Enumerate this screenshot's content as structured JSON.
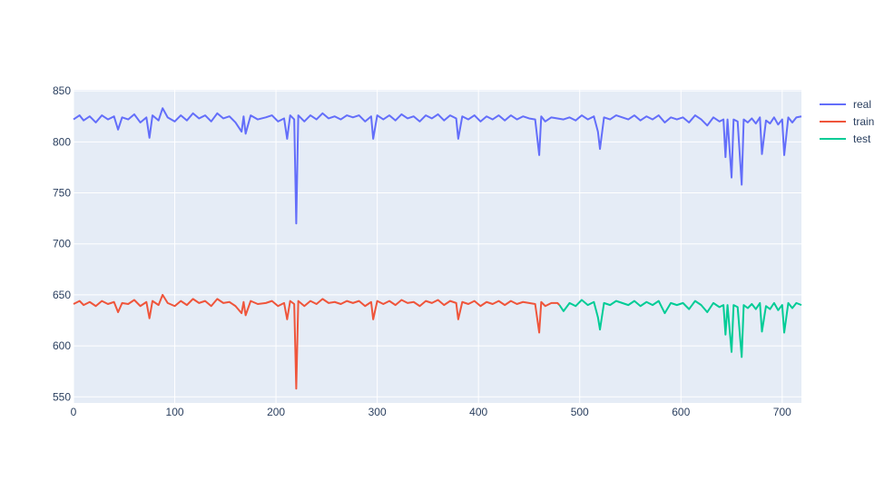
{
  "chart_data": {
    "type": "line",
    "title": "",
    "xlabel": "",
    "ylabel": "",
    "xlim": [
      0,
      719
    ],
    "ylim": [
      544,
      851
    ],
    "x_ticks": [
      0,
      100,
      200,
      300,
      400,
      500,
      600,
      700
    ],
    "y_ticks": [
      550,
      600,
      650,
      700,
      750,
      800,
      850
    ],
    "grid": true,
    "legend_position": "right",
    "colors": {
      "plot_background": "#e5ecf6",
      "grid": "#ffffff",
      "tick_text": "#2a3f5f"
    },
    "series": [
      {
        "name": "real",
        "color": "#636efa",
        "points": [
          [
            0,
            822
          ],
          [
            6,
            826
          ],
          [
            10,
            821
          ],
          [
            16,
            825
          ],
          [
            22,
            819
          ],
          [
            28,
            826
          ],
          [
            34,
            822
          ],
          [
            40,
            825
          ],
          [
            44,
            812
          ],
          [
            48,
            824
          ],
          [
            54,
            822
          ],
          [
            60,
            827
          ],
          [
            66,
            819
          ],
          [
            72,
            824
          ],
          [
            75,
            804
          ],
          [
            78,
            826
          ],
          [
            84,
            821
          ],
          [
            88,
            833
          ],
          [
            93,
            824
          ],
          [
            100,
            820
          ],
          [
            106,
            826
          ],
          [
            112,
            821
          ],
          [
            118,
            828
          ],
          [
            124,
            823
          ],
          [
            130,
            826
          ],
          [
            136,
            820
          ],
          [
            142,
            828
          ],
          [
            148,
            823
          ],
          [
            154,
            825
          ],
          [
            160,
            819
          ],
          [
            166,
            810
          ],
          [
            168,
            825
          ],
          [
            170,
            808
          ],
          [
            175,
            826
          ],
          [
            182,
            822
          ],
          [
            190,
            824
          ],
          [
            196,
            826
          ],
          [
            202,
            820
          ],
          [
            208,
            823
          ],
          [
            211,
            803
          ],
          [
            214,
            826
          ],
          [
            218,
            822
          ],
          [
            220,
            720
          ],
          [
            222,
            826
          ],
          [
            228,
            820
          ],
          [
            234,
            826
          ],
          [
            240,
            822
          ],
          [
            246,
            828
          ],
          [
            252,
            823
          ],
          [
            258,
            825
          ],
          [
            264,
            822
          ],
          [
            270,
            826
          ],
          [
            276,
            824
          ],
          [
            282,
            826
          ],
          [
            288,
            820
          ],
          [
            294,
            825
          ],
          [
            296,
            803
          ],
          [
            300,
            826
          ],
          [
            306,
            822
          ],
          [
            312,
            826
          ],
          [
            318,
            821
          ],
          [
            324,
            827
          ],
          [
            330,
            823
          ],
          [
            336,
            825
          ],
          [
            342,
            820
          ],
          [
            348,
            826
          ],
          [
            354,
            823
          ],
          [
            360,
            827
          ],
          [
            366,
            821
          ],
          [
            372,
            826
          ],
          [
            378,
            823
          ],
          [
            380,
            803
          ],
          [
            384,
            825
          ],
          [
            390,
            822
          ],
          [
            396,
            826
          ],
          [
            402,
            820
          ],
          [
            408,
            825
          ],
          [
            414,
            822
          ],
          [
            420,
            826
          ],
          [
            426,
            821
          ],
          [
            432,
            826
          ],
          [
            438,
            822
          ],
          [
            444,
            825
          ],
          [
            450,
            823
          ],
          [
            456,
            822
          ],
          [
            460,
            787
          ],
          [
            462,
            825
          ],
          [
            466,
            820
          ],
          [
            472,
            824
          ],
          [
            478,
            823
          ],
          [
            484,
            822
          ],
          [
            490,
            824
          ],
          [
            496,
            821
          ],
          [
            502,
            826
          ],
          [
            508,
            822
          ],
          [
            514,
            825
          ],
          [
            518,
            810
          ],
          [
            520,
            793
          ],
          [
            524,
            824
          ],
          [
            530,
            822
          ],
          [
            536,
            826
          ],
          [
            542,
            824
          ],
          [
            548,
            822
          ],
          [
            554,
            826
          ],
          [
            560,
            821
          ],
          [
            566,
            825
          ],
          [
            572,
            822
          ],
          [
            578,
            826
          ],
          [
            584,
            819
          ],
          [
            590,
            824
          ],
          [
            596,
            822
          ],
          [
            602,
            824
          ],
          [
            608,
            819
          ],
          [
            614,
            826
          ],
          [
            620,
            822
          ],
          [
            626,
            816
          ],
          [
            632,
            824
          ],
          [
            638,
            820
          ],
          [
            642,
            822
          ],
          [
            644,
            785
          ],
          [
            646,
            822
          ],
          [
            650,
            765
          ],
          [
            652,
            822
          ],
          [
            656,
            820
          ],
          [
            660,
            758
          ],
          [
            662,
            822
          ],
          [
            666,
            819
          ],
          [
            670,
            823
          ],
          [
            674,
            818
          ],
          [
            678,
            824
          ],
          [
            680,
            788
          ],
          [
            684,
            821
          ],
          [
            688,
            818
          ],
          [
            692,
            824
          ],
          [
            696,
            817
          ],
          [
            700,
            822
          ],
          [
            702,
            787
          ],
          [
            706,
            824
          ],
          [
            710,
            819
          ],
          [
            714,
            824
          ],
          [
            719,
            825
          ]
        ]
      },
      {
        "name": "train",
        "color": "#ef553b",
        "points": [
          [
            0,
            641
          ],
          [
            6,
            644
          ],
          [
            10,
            640
          ],
          [
            16,
            643
          ],
          [
            22,
            639
          ],
          [
            28,
            644
          ],
          [
            34,
            641
          ],
          [
            40,
            643
          ],
          [
            44,
            633
          ],
          [
            48,
            642
          ],
          [
            54,
            641
          ],
          [
            60,
            645
          ],
          [
            66,
            639
          ],
          [
            72,
            643
          ],
          [
            75,
            627
          ],
          [
            78,
            644
          ],
          [
            84,
            640
          ],
          [
            88,
            650
          ],
          [
            93,
            642
          ],
          [
            100,
            639
          ],
          [
            106,
            644
          ],
          [
            112,
            640
          ],
          [
            118,
            646
          ],
          [
            124,
            642
          ],
          [
            130,
            644
          ],
          [
            136,
            639
          ],
          [
            142,
            646
          ],
          [
            148,
            642
          ],
          [
            154,
            643
          ],
          [
            160,
            639
          ],
          [
            166,
            632
          ],
          [
            168,
            643
          ],
          [
            170,
            630
          ],
          [
            175,
            644
          ],
          [
            182,
            641
          ],
          [
            190,
            642
          ],
          [
            196,
            644
          ],
          [
            202,
            639
          ],
          [
            208,
            642
          ],
          [
            211,
            626
          ],
          [
            214,
            644
          ],
          [
            218,
            641
          ],
          [
            220,
            558
          ],
          [
            222,
            644
          ],
          [
            228,
            639
          ],
          [
            234,
            644
          ],
          [
            240,
            641
          ],
          [
            246,
            646
          ],
          [
            252,
            642
          ],
          [
            258,
            643
          ],
          [
            264,
            641
          ],
          [
            270,
            644
          ],
          [
            276,
            642
          ],
          [
            282,
            644
          ],
          [
            288,
            639
          ],
          [
            294,
            643
          ],
          [
            296,
            626
          ],
          [
            300,
            644
          ],
          [
            306,
            641
          ],
          [
            312,
            644
          ],
          [
            318,
            640
          ],
          [
            324,
            645
          ],
          [
            330,
            642
          ],
          [
            336,
            643
          ],
          [
            342,
            639
          ],
          [
            348,
            644
          ],
          [
            354,
            642
          ],
          [
            360,
            645
          ],
          [
            366,
            640
          ],
          [
            372,
            644
          ],
          [
            378,
            642
          ],
          [
            380,
            626
          ],
          [
            384,
            643
          ],
          [
            390,
            641
          ],
          [
            396,
            644
          ],
          [
            402,
            639
          ],
          [
            408,
            643
          ],
          [
            414,
            641
          ],
          [
            420,
            644
          ],
          [
            426,
            640
          ],
          [
            432,
            644
          ],
          [
            438,
            641
          ],
          [
            444,
            643
          ],
          [
            450,
            642
          ],
          [
            456,
            641
          ],
          [
            460,
            613
          ],
          [
            462,
            643
          ],
          [
            466,
            639
          ],
          [
            472,
            642
          ],
          [
            478,
            642
          ],
          [
            480,
            640
          ]
        ]
      },
      {
        "name": "test",
        "color": "#00cc96",
        "points": [
          [
            480,
            640
          ],
          [
            484,
            634
          ],
          [
            490,
            642
          ],
          [
            496,
            639
          ],
          [
            502,
            645
          ],
          [
            508,
            640
          ],
          [
            514,
            643
          ],
          [
            518,
            628
          ],
          [
            520,
            616
          ],
          [
            524,
            642
          ],
          [
            530,
            640
          ],
          [
            536,
            644
          ],
          [
            542,
            642
          ],
          [
            548,
            640
          ],
          [
            554,
            644
          ],
          [
            560,
            639
          ],
          [
            566,
            643
          ],
          [
            572,
            640
          ],
          [
            578,
            644
          ],
          [
            584,
            632
          ],
          [
            590,
            642
          ],
          [
            596,
            640
          ],
          [
            602,
            642
          ],
          [
            608,
            636
          ],
          [
            614,
            644
          ],
          [
            620,
            640
          ],
          [
            626,
            633
          ],
          [
            632,
            642
          ],
          [
            638,
            638
          ],
          [
            642,
            640
          ],
          [
            644,
            611
          ],
          [
            646,
            640
          ],
          [
            650,
            594
          ],
          [
            652,
            640
          ],
          [
            656,
            638
          ],
          [
            660,
            589
          ],
          [
            662,
            640
          ],
          [
            666,
            637
          ],
          [
            670,
            641
          ],
          [
            674,
            636
          ],
          [
            678,
            642
          ],
          [
            680,
            614
          ],
          [
            684,
            639
          ],
          [
            688,
            636
          ],
          [
            692,
            642
          ],
          [
            696,
            635
          ],
          [
            700,
            640
          ],
          [
            702,
            613
          ],
          [
            706,
            642
          ],
          [
            710,
            637
          ],
          [
            714,
            642
          ],
          [
            719,
            640
          ]
        ]
      }
    ]
  }
}
